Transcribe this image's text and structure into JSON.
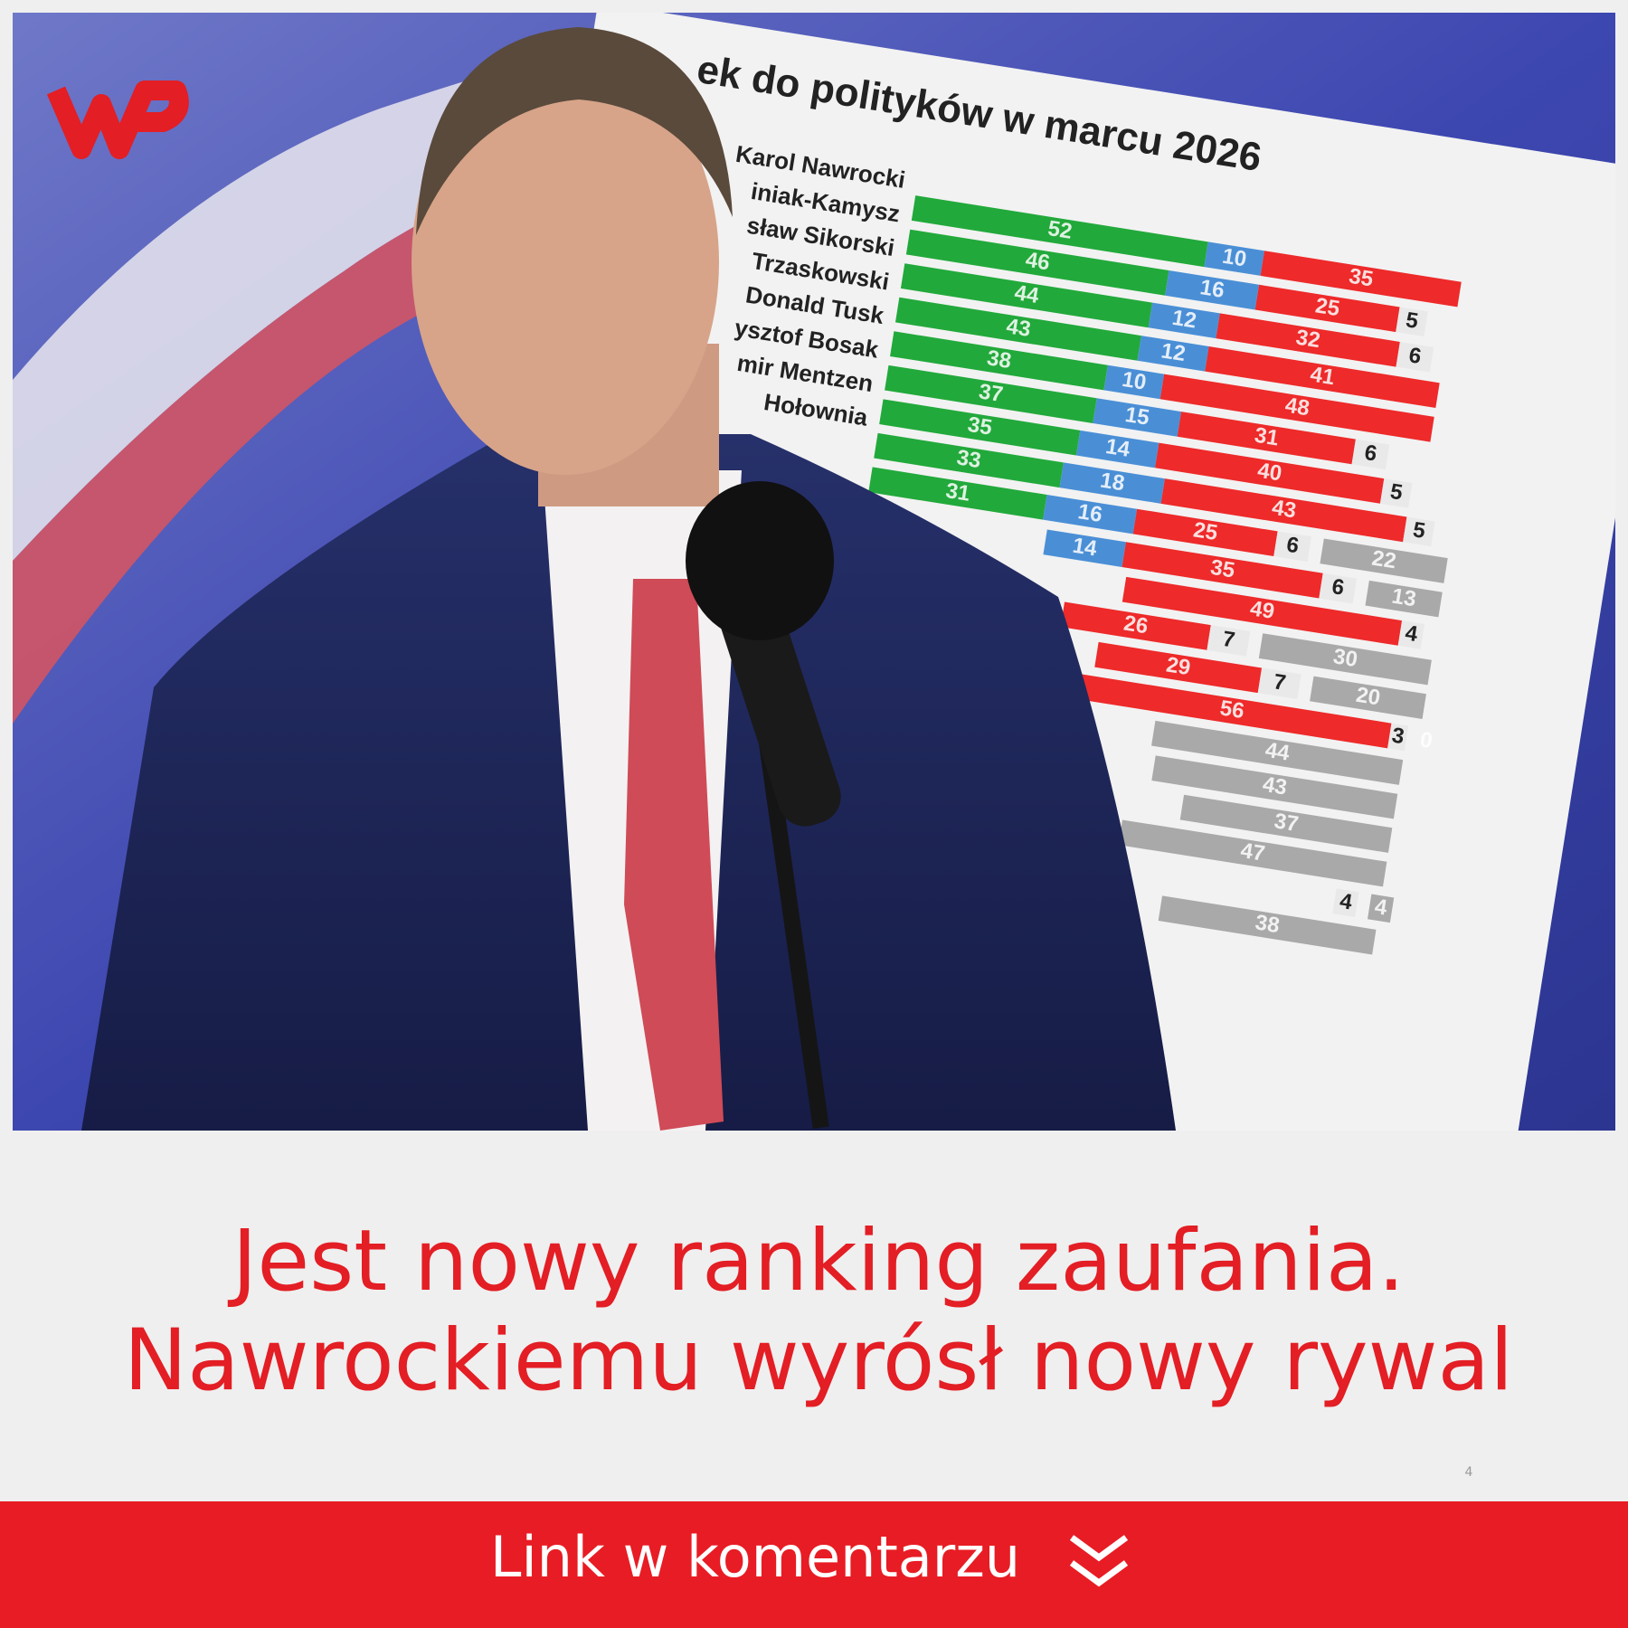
{
  "chart_data": {
    "type": "stacked-bar",
    "title": "ek do polityków w marcu 2026",
    "categories": [
      "Karol Nawrocki",
      "iniak-Kamysz",
      "sław Sikorski",
      "Trzaskowski",
      "Donald Tusk",
      "ysztof Bosak",
      "mir Mentzen",
      "Hołownia",
      null,
      null,
      null,
      null,
      null,
      null,
      null,
      null,
      null,
      null,
      null,
      null
    ],
    "series": [
      {
        "color": "#22a93b",
        "values": [
          52,
          46,
          44,
          43,
          38,
          37,
          35,
          33,
          31,
          null,
          null,
          null,
          null,
          null,
          null,
          null,
          null,
          null,
          null,
          null
        ]
      },
      {
        "color": "#4a8fd6",
        "values": [
          10,
          16,
          12,
          12,
          10,
          15,
          14,
          18,
          16,
          14,
          null,
          null,
          null,
          null,
          null,
          null,
          null,
          null,
          null,
          null
        ]
      },
      {
        "color": "#ee2a2a",
        "values": [
          35,
          25,
          32,
          41,
          48,
          31,
          40,
          43,
          25,
          35,
          49,
          26,
          29,
          56,
          null,
          null,
          null,
          null,
          null,
          null
        ]
      },
      {
        "color": "#e9e9e9",
        "values": [
          null,
          5,
          6,
          null,
          null,
          6,
          5,
          5,
          6,
          6,
          4,
          7,
          7,
          3,
          null,
          null,
          null,
          null,
          4,
          null
        ]
      },
      {
        "color": "#a9a9a9",
        "values": [
          null,
          null,
          null,
          null,
          null,
          null,
          null,
          null,
          22,
          13,
          null,
          30,
          20,
          0,
          44,
          43,
          37,
          47,
          4,
          38
        ]
      }
    ]
  },
  "headline": [
    "Jest nowy ranking zaufania.",
    "Nawrockiemu wyrósł nowy rywal"
  ],
  "page_number": "4",
  "cta": "Link w komentarzu"
}
